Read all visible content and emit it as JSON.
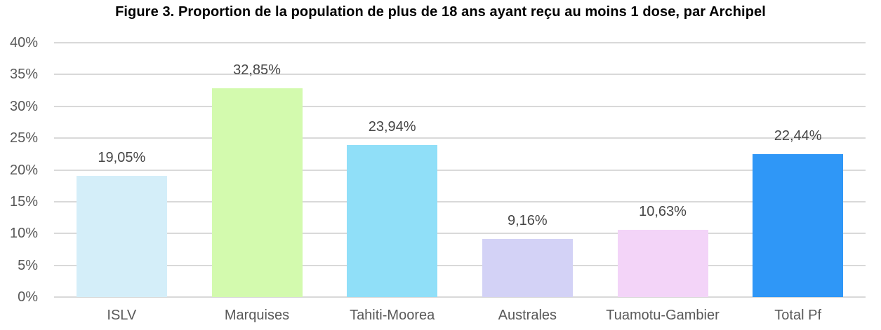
{
  "chart_data": {
    "type": "bar",
    "title": "Figure 3. Proportion de la population de plus de 18 ans ayant reçu au moins 1 dose, par Archipel",
    "categories": [
      "ISLV",
      "Marquises",
      "Tahiti-Moorea",
      "Australes",
      "Tuamotu-Gambier",
      "Total Pf"
    ],
    "values": [
      19.05,
      32.85,
      23.94,
      9.16,
      10.63,
      22.44
    ],
    "value_labels": [
      "19,05%",
      "32,85%",
      "23,94%",
      "9,16%",
      "10,63%",
      "22,44%"
    ],
    "bar_colors": [
      "#D4EEF9",
      "#D3FAAE",
      "#90DFF8",
      "#D3D2F6",
      "#F3D4F8",
      "#2F97F7"
    ],
    "xlabel": "",
    "ylabel": "",
    "ylim": [
      0,
      40
    ],
    "ytick_step": 5,
    "ytick_labels": [
      "0%",
      "5%",
      "10%",
      "15%",
      "20%",
      "25%",
      "30%",
      "35%",
      "40%"
    ],
    "grid": true,
    "legend": false
  },
  "style_colors": {
    "gridline": "#D9D9D9",
    "axis_text": "#595959",
    "data_label_text": "#464646",
    "title_text": "#000000",
    "background": "#FFFFFF"
  }
}
